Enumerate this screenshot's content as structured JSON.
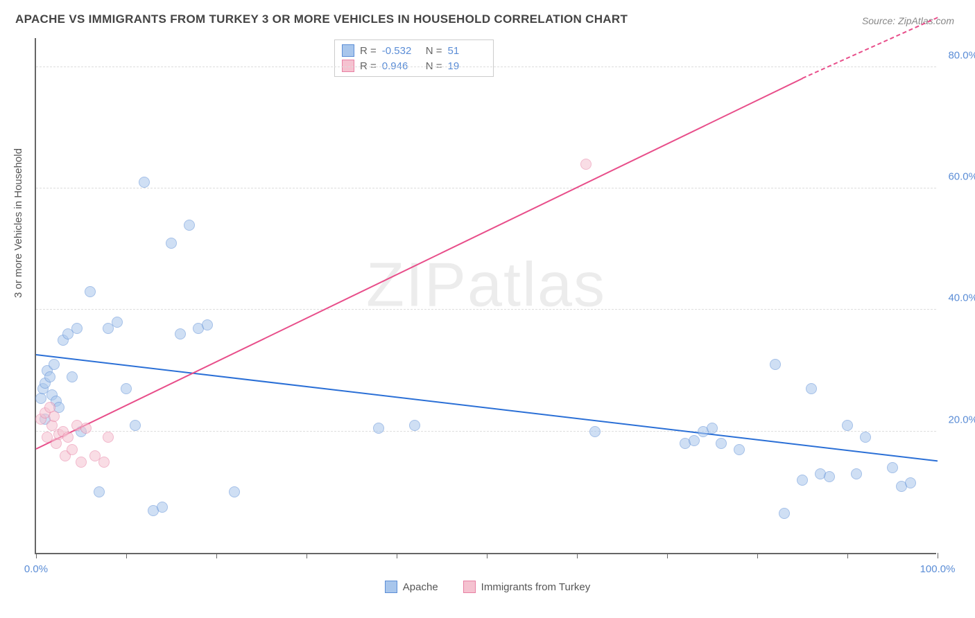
{
  "title": "APACHE VS IMMIGRANTS FROM TURKEY 3 OR MORE VEHICLES IN HOUSEHOLD CORRELATION CHART",
  "source": "Source: ZipAtlas.com",
  "watermark": "ZIPatlas",
  "y_axis_title": "3 or more Vehicles in Household",
  "chart": {
    "type": "scatter",
    "xlim": [
      0,
      100
    ],
    "ylim": [
      0,
      85
    ],
    "x_ticks": [
      0,
      10,
      20,
      30,
      40,
      50,
      60,
      70,
      80,
      90,
      100
    ],
    "x_tick_labels": {
      "0": "0.0%",
      "100": "100.0%"
    },
    "y_ticks": [
      20,
      40,
      60,
      80
    ],
    "y_tick_labels": [
      "20.0%",
      "40.0%",
      "60.0%",
      "80.0%"
    ],
    "grid_color": "#dddddd",
    "background_color": "#ffffff",
    "axis_color": "#666666",
    "tick_label_color": "#5b8dd6",
    "point_radius": 8,
    "point_opacity": 0.55,
    "series": [
      {
        "name": "Apache",
        "color_fill": "#a8c6ec",
        "color_stroke": "#5b8dd6",
        "trend_color": "#2a6fd6",
        "trend_start": [
          0,
          32.5
        ],
        "trend_end": [
          100,
          15
        ],
        "R": "-0.532",
        "N": "51",
        "points": [
          [
            0.5,
            25.5
          ],
          [
            0.8,
            27
          ],
          [
            1,
            22
          ],
          [
            1,
            28
          ],
          [
            1.2,
            30
          ],
          [
            1.5,
            29
          ],
          [
            1.8,
            26
          ],
          [
            2,
            31
          ],
          [
            2.2,
            25
          ],
          [
            2.5,
            24
          ],
          [
            3,
            35
          ],
          [
            3.5,
            36
          ],
          [
            4,
            29
          ],
          [
            4.5,
            37
          ],
          [
            5,
            20
          ],
          [
            6,
            43
          ],
          [
            7,
            10
          ],
          [
            8,
            37
          ],
          [
            9,
            38
          ],
          [
            10,
            27
          ],
          [
            11,
            21
          ],
          [
            12,
            61
          ],
          [
            13,
            7
          ],
          [
            14,
            7.5
          ],
          [
            15,
            51
          ],
          [
            16,
            36
          ],
          [
            17,
            54
          ],
          [
            18,
            37
          ],
          [
            19,
            37.5
          ],
          [
            22,
            10
          ],
          [
            38,
            20.5
          ],
          [
            42,
            21
          ],
          [
            62,
            20
          ],
          [
            72,
            18
          ],
          [
            73,
            18.5
          ],
          [
            74,
            20
          ],
          [
            75,
            20.5
          ],
          [
            76,
            18
          ],
          [
            78,
            17
          ],
          [
            82,
            31
          ],
          [
            83,
            6.5
          ],
          [
            85,
            12
          ],
          [
            86,
            27
          ],
          [
            87,
            13
          ],
          [
            88,
            12.5
          ],
          [
            90,
            21
          ],
          [
            91,
            13
          ],
          [
            92,
            19
          ],
          [
            95,
            14
          ],
          [
            96,
            11
          ],
          [
            97,
            11.5
          ]
        ]
      },
      {
        "name": "Immigrants from Turkey",
        "color_fill": "#f5c2d0",
        "color_stroke": "#e87fa3",
        "trend_color": "#e84e8a",
        "trend_start": [
          0,
          17
        ],
        "trend_end": [
          85,
          78
        ],
        "trend_dashed_end": [
          100,
          88
        ],
        "R": "0.946",
        "N": "19",
        "points": [
          [
            0.5,
            22
          ],
          [
            1,
            23
          ],
          [
            1.2,
            19
          ],
          [
            1.5,
            24
          ],
          [
            1.8,
            21
          ],
          [
            2,
            22.5
          ],
          [
            2.2,
            18
          ],
          [
            2.5,
            19.5
          ],
          [
            3,
            20
          ],
          [
            3.2,
            16
          ],
          [
            3.5,
            19
          ],
          [
            4,
            17
          ],
          [
            4.5,
            21
          ],
          [
            5,
            15
          ],
          [
            5.5,
            20.5
          ],
          [
            6.5,
            16
          ],
          [
            7.5,
            15
          ],
          [
            8,
            19
          ],
          [
            61,
            64
          ]
        ]
      }
    ]
  },
  "stats_legend": {
    "R_label": "R =",
    "N_label": "N ="
  },
  "bottom_legend": {
    "items": [
      "Apache",
      "Immigrants from Turkey"
    ]
  }
}
